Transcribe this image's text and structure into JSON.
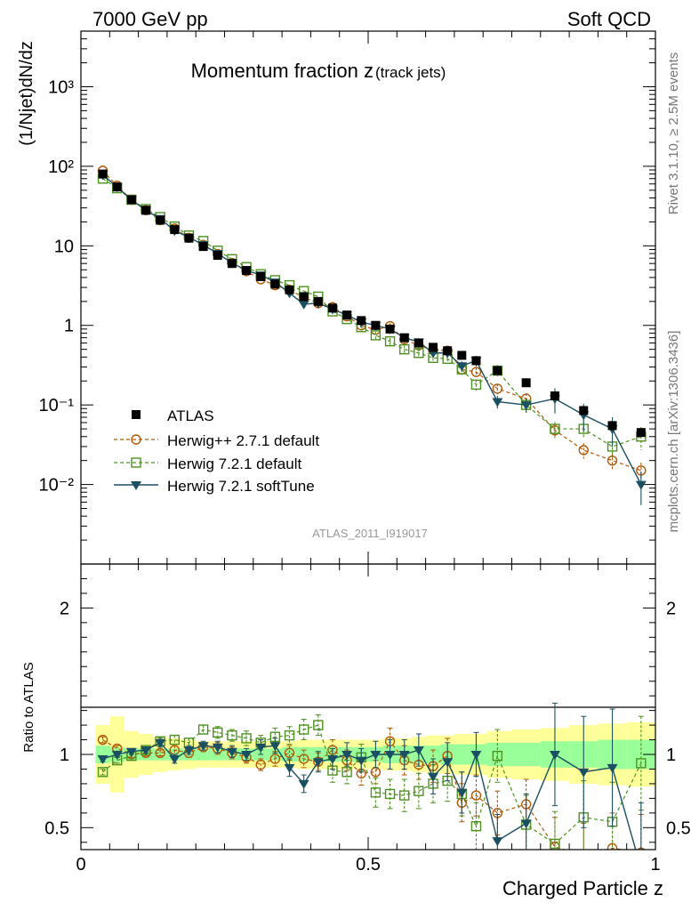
{
  "header": {
    "left": "7000 GeV pp",
    "right": "Soft QCD"
  },
  "side_text": {
    "top": "Rivet 3.1.10, ≥ 2.5M events",
    "bottom": "mcplots.cern.ch [arXiv:1306.3436]"
  },
  "chart_data": {
    "type": "scatter",
    "title": "Momentum fraction z",
    "title_sub": "(track jets)",
    "watermark": "ATLAS_2011_I919017",
    "xlabel": "Charged Particle z",
    "ylabel_main": "(1/Njet)dN/dz",
    "ylabel_ratio": "Ratio to ATLAS",
    "xlim": [
      0,
      1
    ],
    "ylim_main": [
      0.001,
      5000
    ],
    "ylim_ratio": [
      0.35,
      2.3
    ],
    "y_scale_main": "log",
    "x_ticks": [
      "0",
      "0.5",
      "1"
    ],
    "y_ticks_main": [
      "10⁻²",
      "10⁻¹",
      "1",
      "10",
      "10²",
      "10³"
    ],
    "y_ticks_ratio": [
      "0.5",
      "1",
      "2"
    ],
    "legend_position": "bottom-left",
    "x": [
      0.038,
      0.063,
      0.088,
      0.113,
      0.138,
      0.163,
      0.188,
      0.213,
      0.238,
      0.263,
      0.288,
      0.313,
      0.338,
      0.363,
      0.388,
      0.413,
      0.438,
      0.463,
      0.488,
      0.513,
      0.538,
      0.563,
      0.588,
      0.613,
      0.638,
      0.663,
      0.688,
      0.725,
      0.775,
      0.825,
      0.875,
      0.925,
      0.975
    ],
    "series": [
      {
        "name": "ATLAS",
        "marker": "filled-square",
        "color": "#000000",
        "values": [
          80,
          55,
          38,
          28,
          21,
          16,
          12.5,
          9.8,
          7.6,
          6.0,
          4.9,
          4.1,
          3.3,
          2.8,
          2.3,
          2.0,
          1.65,
          1.35,
          1.15,
          1.0,
          0.9,
          0.7,
          0.6,
          0.53,
          0.48,
          0.42,
          0.36,
          0.27,
          0.19,
          0.13,
          0.085,
          0.055,
          0.045
        ],
        "ratio_band_inner": [
          0.06,
          0.05,
          0.04,
          0.04,
          0.04,
          0.04,
          0.04,
          0.04,
          0.04,
          0.04,
          0.04,
          0.04,
          0.04,
          0.05,
          0.05,
          0.05,
          0.05,
          0.05,
          0.05,
          0.05,
          0.06,
          0.06,
          0.06,
          0.06,
          0.07,
          0.07,
          0.07,
          0.08,
          0.08,
          0.09,
          0.09,
          0.1,
          0.1
        ],
        "ratio_band_outer": [
          0.2,
          0.26,
          0.16,
          0.14,
          0.12,
          0.11,
          0.1,
          0.09,
          0.09,
          0.09,
          0.09,
          0.09,
          0.09,
          0.09,
          0.1,
          0.1,
          0.1,
          0.1,
          0.1,
          0.1,
          0.11,
          0.11,
          0.12,
          0.13,
          0.13,
          0.14,
          0.14,
          0.16,
          0.17,
          0.18,
          0.2,
          0.21,
          0.22
        ]
      },
      {
        "name": "Herwig++ 2.7.1 default",
        "marker": "open-circle",
        "color": "#b35806",
        "values": [
          88,
          57,
          38,
          28,
          21,
          16.5,
          12.6,
          10.3,
          7.9,
          6.1,
          4.8,
          3.8,
          3.2,
          2.8,
          2.25,
          1.9,
          1.7,
          1.3,
          1.0,
          0.88,
          0.98,
          0.67,
          0.56,
          0.49,
          0.48,
          0.28,
          0.26,
          0.16,
          0.12,
          0.048,
          0.027,
          0.02,
          0.015
        ],
        "ratio": [
          1.1,
          1.04,
          1.0,
          1.01,
          1.01,
          1.03,
          1.01,
          1.05,
          1.04,
          1.01,
          0.98,
          0.93,
          0.97,
          1.01,
          0.97,
          0.95,
          1.03,
          0.96,
          0.87,
          0.88,
          1.09,
          0.96,
          0.93,
          0.92,
          0.99,
          0.67,
          0.72,
          0.6,
          0.66,
          0.37,
          0.31,
          0.36,
          0.33
        ],
        "ratio_err": [
          0.02,
          0.02,
          0.02,
          0.02,
          0.02,
          0.03,
          0.03,
          0.03,
          0.04,
          0.04,
          0.04,
          0.04,
          0.05,
          0.05,
          0.06,
          0.06,
          0.07,
          0.07,
          0.08,
          0.08,
          0.09,
          0.1,
          0.1,
          0.11,
          0.12,
          0.13,
          0.14,
          0.15,
          0.17,
          0.2,
          0.22,
          0.24,
          0.26
        ]
      },
      {
        "name": "Herwig 7.2.1 default",
        "marker": "open-square",
        "color": "#4d9221",
        "values": [
          70,
          53,
          38,
          29,
          23,
          17.5,
          13.5,
          11.5,
          8.7,
          6.8,
          5.4,
          4.4,
          3.7,
          3.2,
          2.7,
          2.3,
          1.5,
          1.2,
          0.95,
          0.75,
          0.63,
          0.5,
          0.45,
          0.39,
          0.38,
          0.28,
          0.18,
          0.27,
          0.1,
          0.05,
          0.05,
          0.03,
          0.04
        ],
        "ratio": [
          0.88,
          0.96,
          0.99,
          1.03,
          1.09,
          1.1,
          1.08,
          1.17,
          1.15,
          1.13,
          1.11,
          1.08,
          1.12,
          1.13,
          1.17,
          1.2,
          0.89,
          0.88,
          0.98,
          0.74,
          0.73,
          0.72,
          0.75,
          0.8,
          0.82,
          0.73,
          0.51,
          0.99,
          0.52,
          0.39,
          0.57,
          0.54,
          0.94
        ],
        "ratio_err": [
          0.02,
          0.02,
          0.02,
          0.03,
          0.03,
          0.03,
          0.03,
          0.03,
          0.04,
          0.04,
          0.05,
          0.05,
          0.06,
          0.06,
          0.07,
          0.07,
          0.08,
          0.08,
          0.09,
          0.1,
          0.1,
          0.11,
          0.12,
          0.13,
          0.14,
          0.15,
          0.16,
          0.18,
          0.2,
          0.22,
          0.25,
          0.27,
          0.32
        ]
      },
      {
        "name": "Herwig 7.2.1 softTune",
        "marker": "filled-triangle-down",
        "color": "#1b4f62",
        "values": [
          78,
          55,
          38,
          28,
          22,
          15.5,
          12.8,
          10.3,
          8.0,
          6.1,
          4.9,
          4.3,
          3.5,
          2.55,
          1.85,
          1.9,
          1.6,
          1.35,
          1.1,
          1.0,
          0.9,
          0.7,
          0.62,
          0.45,
          0.45,
          0.31,
          0.36,
          0.11,
          0.1,
          0.12,
          0.075,
          0.05,
          0.01
        ],
        "ratio": [
          0.97,
          1.0,
          1.02,
          1.03,
          1.08,
          0.97,
          1.03,
          1.06,
          1.05,
          1.02,
          1.0,
          1.05,
          1.06,
          0.91,
          0.8,
          0.95,
          0.97,
          1.0,
          0.96,
          1.0,
          1.0,
          1.0,
          1.03,
          0.85,
          0.95,
          0.74,
          1.0,
          0.41,
          0.53,
          1.0,
          0.88,
          0.91,
          0.22
        ],
        "ratio_err": [
          0.02,
          0.02,
          0.02,
          0.02,
          0.03,
          0.03,
          0.03,
          0.03,
          0.04,
          0.04,
          0.04,
          0.05,
          0.05,
          0.06,
          0.06,
          0.07,
          0.07,
          0.08,
          0.08,
          0.09,
          0.1,
          0.1,
          0.11,
          0.12,
          0.13,
          0.14,
          0.15,
          0.18,
          0.2,
          0.35,
          0.38,
          0.4,
          0.45
        ]
      }
    ]
  }
}
